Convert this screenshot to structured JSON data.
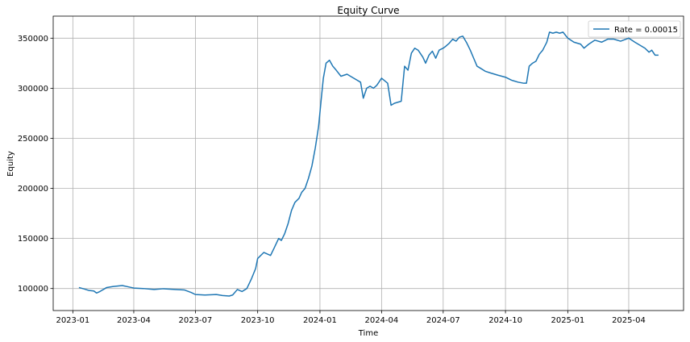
{
  "chart_data": {
    "type": "line",
    "title": "Equity Curve",
    "xlabel": "Time",
    "ylabel": "Equity",
    "x_type": "date",
    "xlim": [
      "2022-12-03",
      "2025-06-21"
    ],
    "ylim": [
      78000,
      372000
    ],
    "x_ticks": [
      "2023-01-01",
      "2023-04-01",
      "2023-07-01",
      "2023-10-01",
      "2024-01-01",
      "2024-04-01",
      "2024-07-01",
      "2024-10-01",
      "2025-01-01",
      "2025-04-01"
    ],
    "x_tick_labels": [
      "2023-01",
      "2023-04",
      "2023-07",
      "2023-10",
      "2024-01",
      "2024-04",
      "2024-07",
      "2024-10",
      "2025-01",
      "2025-04"
    ],
    "y_ticks": [
      100000,
      150000,
      200000,
      250000,
      300000,
      350000
    ],
    "y_tick_labels": [
      "100000",
      "150000",
      "200000",
      "250000",
      "300000",
      "350000"
    ],
    "grid": true,
    "legend_position": "top-right",
    "series": [
      {
        "name": "Rate = 0.00015",
        "color": "#1f77b4",
        "x": [
          "2023-01-10",
          "2023-01-18",
          "2023-01-25",
          "2023-02-01",
          "2023-02-05",
          "2023-02-10",
          "2023-02-20",
          "2023-03-01",
          "2023-03-15",
          "2023-03-25",
          "2023-04-01",
          "2023-04-15",
          "2023-05-01",
          "2023-05-15",
          "2023-06-01",
          "2023-06-15",
          "2023-06-25",
          "2023-07-01",
          "2023-07-15",
          "2023-08-01",
          "2023-08-10",
          "2023-08-20",
          "2023-08-25",
          "2023-09-01",
          "2023-09-08",
          "2023-09-15",
          "2023-09-22",
          "2023-09-28",
          "2023-10-01",
          "2023-10-10",
          "2023-10-20",
          "2023-10-25",
          "2023-11-01",
          "2023-11-05",
          "2023-11-10",
          "2023-11-15",
          "2023-11-20",
          "2023-11-25",
          "2023-12-01",
          "2023-12-05",
          "2023-12-10",
          "2023-12-15",
          "2023-12-20",
          "2023-12-25",
          "2023-12-30",
          "2024-01-03",
          "2024-01-06",
          "2024-01-10",
          "2024-01-15",
          "2024-01-20",
          "2024-01-25",
          "2024-02-01",
          "2024-02-10",
          "2024-02-20",
          "2024-03-01",
          "2024-03-05",
          "2024-03-10",
          "2024-03-15",
          "2024-03-20",
          "2024-03-25",
          "2024-04-01",
          "2024-04-10",
          "2024-04-15",
          "2024-04-20",
          "2024-04-30",
          "2024-05-05",
          "2024-05-10",
          "2024-05-15",
          "2024-05-20",
          "2024-05-25",
          "2024-06-01",
          "2024-06-05",
          "2024-06-10",
          "2024-06-15",
          "2024-06-20",
          "2024-06-25",
          "2024-07-01",
          "2024-07-05",
          "2024-07-10",
          "2024-07-15",
          "2024-07-20",
          "2024-07-25",
          "2024-07-30",
          "2024-08-05",
          "2024-08-10",
          "2024-08-15",
          "2024-08-20",
          "2024-08-25",
          "2024-09-01",
          "2024-09-10",
          "2024-09-20",
          "2024-10-01",
          "2024-10-10",
          "2024-10-20",
          "2024-10-28",
          "2024-11-01",
          "2024-11-05",
          "2024-11-10",
          "2024-11-15",
          "2024-11-20",
          "2024-11-25",
          "2024-12-01",
          "2024-12-05",
          "2024-12-10",
          "2024-12-15",
          "2024-12-20",
          "2024-12-25",
          "2025-01-01",
          "2025-01-10",
          "2025-01-20",
          "2025-01-25",
          "2025-02-01",
          "2025-02-10",
          "2025-02-20",
          "2025-03-01",
          "2025-03-10",
          "2025-03-20",
          "2025-04-01",
          "2025-04-10",
          "2025-04-20",
          "2025-04-25",
          "2025-05-01",
          "2025-05-05",
          "2025-05-10",
          "2025-05-15"
        ],
        "values": [
          101000,
          99500,
          98000,
          97500,
          95500,
          97000,
          101000,
          102000,
          103000,
          101500,
          100500,
          100000,
          99000,
          99800,
          99000,
          98500,
          96000,
          94000,
          93500,
          94000,
          93000,
          92500,
          93500,
          99000,
          97000,
          100000,
          110000,
          120000,
          130000,
          136000,
          133000,
          140000,
          150000,
          148000,
          155000,
          165000,
          178000,
          186000,
          190000,
          196000,
          200000,
          210000,
          222000,
          240000,
          262000,
          290000,
          310000,
          325000,
          328000,
          322000,
          318000,
          312000,
          314000,
          310000,
          306000,
          290000,
          300000,
          302000,
          300000,
          303000,
          310000,
          305000,
          283000,
          285000,
          287000,
          322000,
          318000,
          335000,
          340000,
          338000,
          331000,
          325000,
          333000,
          337000,
          330000,
          338000,
          340000,
          342000,
          345000,
          349000,
          347000,
          351000,
          352000,
          345000,
          338000,
          330000,
          322000,
          320000,
          317000,
          315000,
          313000,
          311000,
          308000,
          306000,
          305000,
          305000,
          322000,
          325000,
          327000,
          334000,
          338000,
          346000,
          356000,
          355000,
          356000,
          355000,
          356000,
          350000,
          346000,
          344000,
          340000,
          344000,
          348000,
          346000,
          349000,
          349000,
          347000,
          350000,
          346000,
          342000,
          340000,
          336000,
          338000,
          333000,
          333000
        ]
      }
    ]
  }
}
